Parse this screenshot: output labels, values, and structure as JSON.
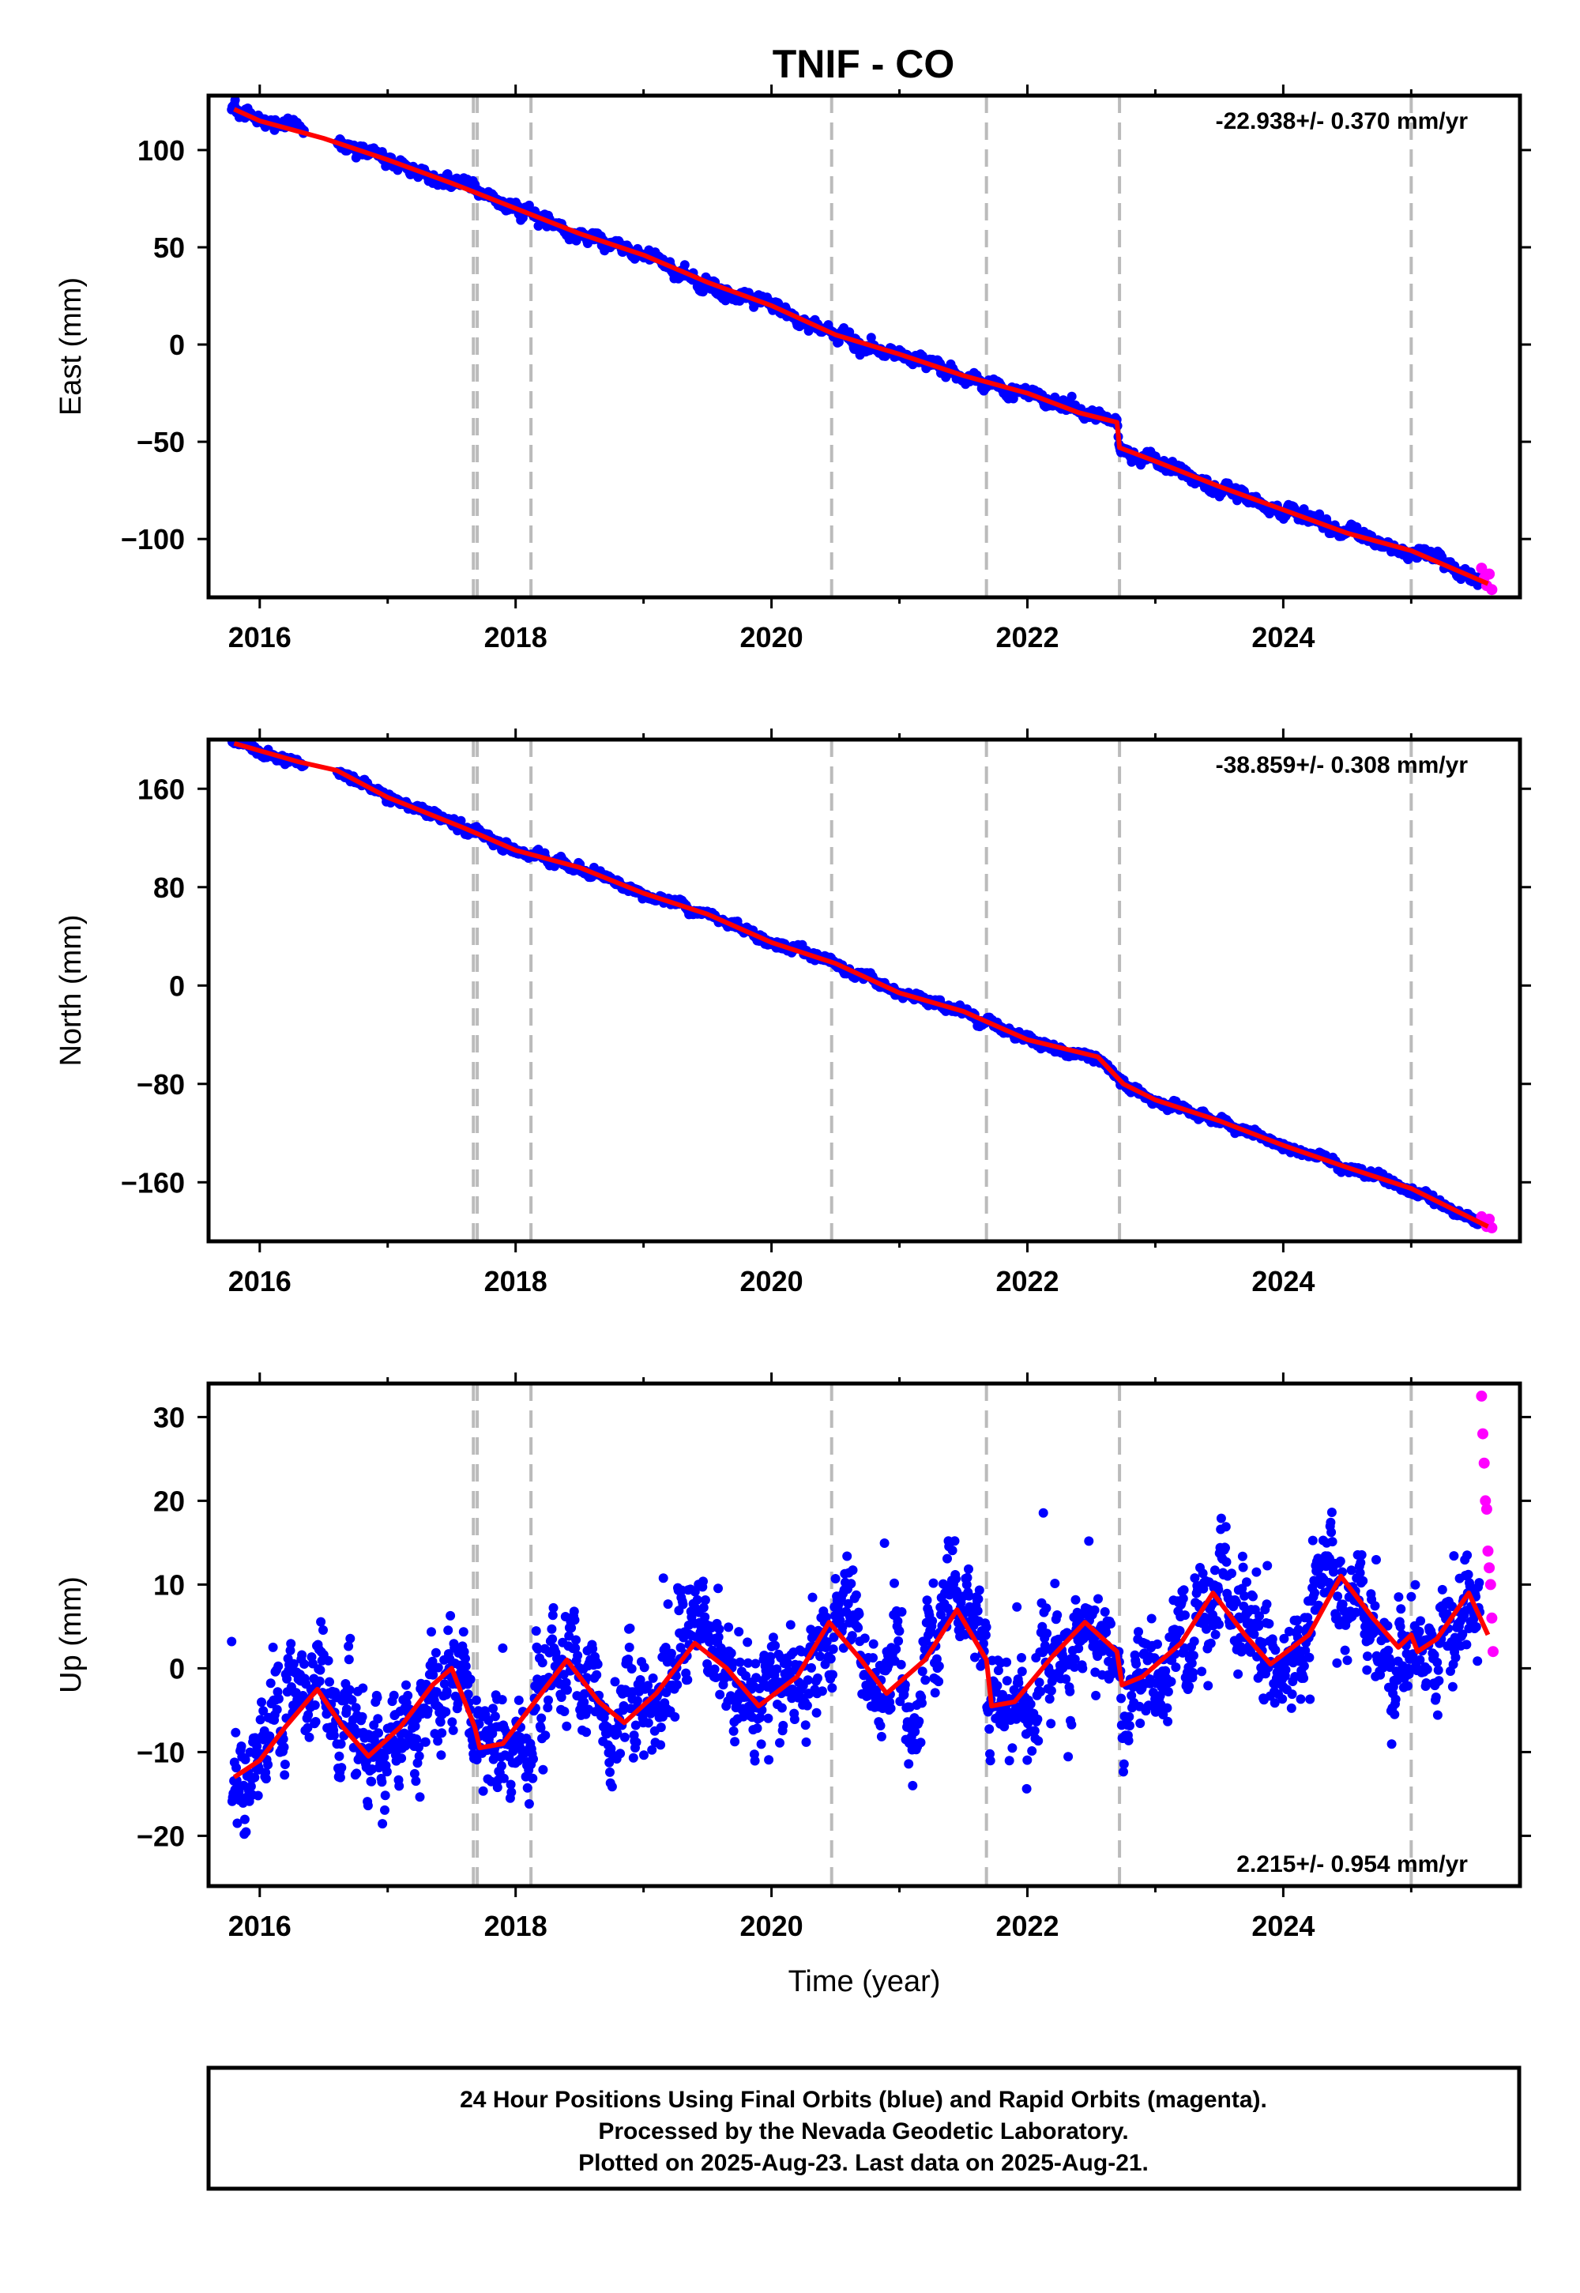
{
  "chart_data": [
    {
      "type": "scatter",
      "title": "TNIF - CO",
      "ylabel": "East (mm)",
      "xlabel": "",
      "xlim": [
        2015.6,
        2025.85
      ],
      "ylim": [
        -130,
        128
      ],
      "xticks": [
        "2016",
        "2018",
        "2020",
        "2022",
        "2024"
      ],
      "yticks": [
        "100",
        "50",
        "0",
        "−50",
        "−100"
      ],
      "rate": "-22.938+/- 0.370 mm/yr",
      "rate_position": "top-right",
      "events": [
        2017.67,
        2017.7,
        2018.12,
        2020.47,
        2021.68,
        2022.72,
        2025.0
      ],
      "model": {
        "x": [
          2015.8,
          2016.0,
          2016.5,
          2017.0,
          2017.5,
          2018.0,
          2018.5,
          2019.0,
          2019.5,
          2020.0,
          2020.5,
          2021.0,
          2021.5,
          2022.0,
          2022.4,
          2022.7,
          2022.72,
          2023.0,
          2023.5,
          2024.0,
          2024.5,
          2025.0,
          2025.6
        ],
        "y": [
          121,
          115,
          106,
          95,
          83,
          70,
          57,
          46,
          32,
          20,
          5,
          -5,
          -16,
          -25,
          -35,
          -40,
          -53,
          -60,
          -73,
          -85,
          -97,
          -106,
          -123
        ]
      },
      "series": [
        {
          "name": "Final Orbits",
          "color": "#0000ff"
        },
        {
          "name": "Rapid Orbits",
          "color": "#ff00ff",
          "x": [
            2025.55,
            2025.57,
            2025.59,
            2025.61,
            2025.63
          ],
          "y": [
            -115,
            -120,
            -124,
            -118,
            -126
          ]
        }
      ]
    },
    {
      "type": "scatter",
      "ylabel": "North (mm)",
      "xlabel": "",
      "xlim": [
        2015.6,
        2025.85
      ],
      "ylim": [
        -208,
        200
      ],
      "xticks": [
        "2016",
        "2018",
        "2020",
        "2022",
        "2024"
      ],
      "yticks": [
        "160",
        "80",
        "0",
        "−80",
        "−160"
      ],
      "rate": "-38.859+/- 0.308 mm/yr",
      "rate_position": "top-right",
      "events": [
        2017.67,
        2017.7,
        2018.12,
        2020.47,
        2021.68,
        2022.72,
        2025.0
      ],
      "model": {
        "x": [
          2015.8,
          2016.3,
          2016.6,
          2017.0,
          2017.6,
          2018.0,
          2018.5,
          2019.0,
          2019.5,
          2020.0,
          2020.5,
          2021.0,
          2021.5,
          2022.0,
          2022.55,
          2022.75,
          2023.0,
          2023.5,
          2024.0,
          2024.5,
          2025.0,
          2025.6
        ],
        "y": [
          197,
          182,
          175,
          153,
          128,
          110,
          96,
          75,
          58,
          35,
          18,
          -6,
          -21,
          -44,
          -58,
          -80,
          -93,
          -110,
          -130,
          -148,
          -165,
          -196
        ]
      },
      "series": [
        {
          "name": "Final Orbits",
          "color": "#0000ff"
        },
        {
          "name": "Rapid Orbits",
          "color": "#ff00ff",
          "x": [
            2025.55,
            2025.57,
            2025.59,
            2025.61,
            2025.63
          ],
          "y": [
            -188,
            -192,
            -196,
            -190,
            -197
          ]
        }
      ]
    },
    {
      "type": "scatter",
      "ylabel": "Up (mm)",
      "xlabel": "Time (year)",
      "xlim": [
        2015.6,
        2025.85
      ],
      "ylim": [
        -26,
        34
      ],
      "xticks": [
        "2016",
        "2018",
        "2020",
        "2022",
        "2024"
      ],
      "yticks": [
        "30",
        "20",
        "10",
        "0",
        "−10",
        "−20"
      ],
      "rate": "2.215+/- 0.954 mm/yr",
      "rate_position": "bottom-right",
      "events": [
        2017.67,
        2017.7,
        2018.12,
        2020.47,
        2021.68,
        2022.72,
        2025.0
      ],
      "model": {
        "x": [
          2015.8,
          2016.0,
          2016.2,
          2016.45,
          2016.65,
          2016.85,
          2017.1,
          2017.35,
          2017.5,
          2017.68,
          2017.72,
          2017.9,
          2018.1,
          2018.4,
          2018.65,
          2018.85,
          2019.1,
          2019.4,
          2019.65,
          2019.9,
          2020.2,
          2020.45,
          2020.7,
          2020.9,
          2021.2,
          2021.45,
          2021.68,
          2021.72,
          2021.9,
          2022.2,
          2022.45,
          2022.7,
          2022.74,
          2022.9,
          2023.2,
          2023.45,
          2023.7,
          2023.9,
          2024.2,
          2024.45,
          2024.7,
          2024.9,
          2025.0,
          2025.05,
          2025.2,
          2025.45,
          2025.6
        ],
        "y": [
          -13,
          -11,
          -7,
          -2.5,
          -7,
          -10.5,
          -7,
          -2,
          0,
          -7,
          -9.5,
          -9,
          -5,
          1,
          -4,
          -6.5,
          -3,
          3,
          0,
          -4.5,
          -1,
          5.5,
          1,
          -3,
          1,
          7,
          1,
          -4.5,
          -4,
          1.5,
          5.5,
          2,
          -2,
          -1,
          3,
          9,
          4,
          0.5,
          4,
          11,
          6,
          2.5,
          4,
          2,
          3.5,
          9,
          4
        ]
      },
      "series": [
        {
          "name": "Final Orbits",
          "color": "#0000ff"
        },
        {
          "name": "Rapid Orbits",
          "color": "#ff00ff",
          "x": [
            2025.55,
            2025.56,
            2025.57,
            2025.58,
            2025.59,
            2025.6,
            2025.61,
            2025.62,
            2025.63,
            2025.64
          ],
          "y": [
            32.5,
            28,
            24.5,
            20,
            19,
            14,
            12,
            10,
            6,
            2
          ]
        }
      ]
    }
  ],
  "figure": {
    "title": "TNIF - CO",
    "colors": {
      "final_orbits": "#0000ff",
      "rapid_orbits": "#ff00ff",
      "model": "#ff0000",
      "event_lines": "#bbbbbb"
    }
  },
  "footer": {
    "lines": [
      "24 Hour Positions Using Final Orbits (blue) and Rapid Orbits (magenta).",
      "Processed by the Nevada Geodetic Laboratory.",
      "Plotted on 2025-Aug-23. Last data on 2025-Aug-21."
    ]
  }
}
